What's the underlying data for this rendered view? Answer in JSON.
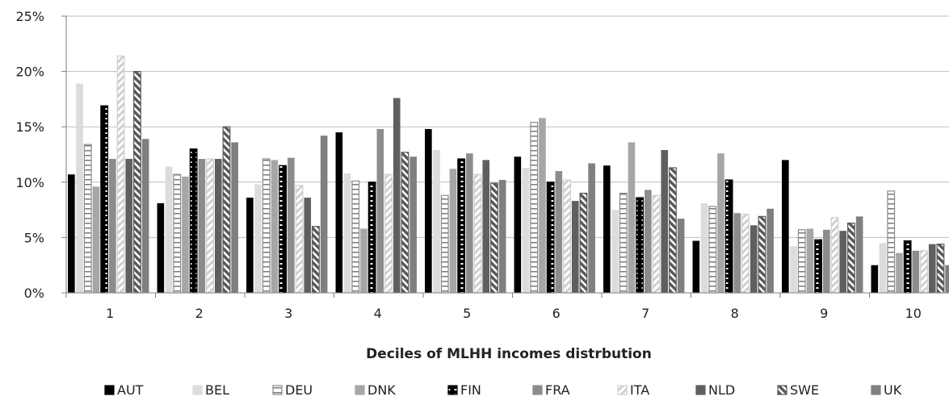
{
  "chart_data": {
    "type": "bar",
    "categories": [
      "1",
      "2",
      "3",
      "4",
      "5",
      "6",
      "7",
      "8",
      "9",
      "10"
    ],
    "xlabel": "Deciles of MLHH incomes distrbution",
    "ylabel": "",
    "ylim": [
      0,
      25
    ],
    "yticks": [
      "0%",
      "5%",
      "10%",
      "15%",
      "20%",
      "25%"
    ],
    "ytick_values": [
      0,
      5,
      10,
      15,
      20,
      25
    ],
    "grid": true,
    "legend_position": "bottom",
    "series": [
      {
        "name": "AUT",
        "color": "#000000",
        "pattern": "solid",
        "values": [
          10.7,
          8.1,
          8.6,
          14.5,
          14.8,
          12.3,
          11.5,
          4.7,
          12.0,
          2.5
        ]
      },
      {
        "name": "BEL",
        "color": "#dcdcdc",
        "pattern": "solid",
        "values": [
          18.9,
          11.4,
          9.8,
          10.8,
          12.9,
          11.3,
          7.5,
          8.1,
          4.2,
          4.5
        ]
      },
      {
        "name": "DEU",
        "color": "#ffffff",
        "pattern": "hlines",
        "values": [
          13.4,
          10.7,
          12.1,
          10.1,
          8.8,
          15.4,
          9.0,
          7.8,
          5.7,
          9.2
        ]
      },
      {
        "name": "DNK",
        "color": "#a6a6a6",
        "pattern": "solid",
        "values": [
          9.6,
          10.5,
          12.0,
          5.8,
          11.2,
          15.8,
          13.6,
          12.6,
          5.8,
          3.6
        ]
      },
      {
        "name": "FIN",
        "color": "#000000",
        "pattern": "dash-cells",
        "values": [
          16.9,
          13.0,
          11.5,
          10.0,
          12.1,
          10.0,
          8.6,
          10.2,
          4.8,
          4.7
        ]
      },
      {
        "name": "FRA",
        "color": "#8c8c8c",
        "pattern": "solid",
        "values": [
          12.1,
          12.1,
          12.2,
          14.8,
          12.6,
          11.0,
          9.3,
          7.2,
          5.7,
          3.8
        ]
      },
      {
        "name": "ITA",
        "color": "#d9d9d9",
        "pattern": "diag-light",
        "values": [
          21.4,
          12.1,
          9.7,
          10.7,
          10.7,
          10.2,
          8.8,
          7.1,
          6.8,
          3.8
        ]
      },
      {
        "name": "NLD",
        "color": "#5f5f5f",
        "pattern": "solid",
        "values": [
          12.1,
          12.1,
          8.6,
          17.6,
          12.0,
          8.3,
          12.9,
          6.1,
          5.6,
          4.4
        ]
      },
      {
        "name": "SWE",
        "color": "#595959",
        "pattern": "diag-dark",
        "values": [
          20.0,
          15.0,
          6.0,
          12.7,
          9.9,
          9.0,
          11.3,
          6.9,
          6.3,
          4.4
        ]
      },
      {
        "name": "UK",
        "color": "#7f7f7f",
        "pattern": "solid",
        "values": [
          13.9,
          13.6,
          14.2,
          12.3,
          10.2,
          11.7,
          6.7,
          7.6,
          6.9,
          2.5
        ]
      }
    ]
  }
}
